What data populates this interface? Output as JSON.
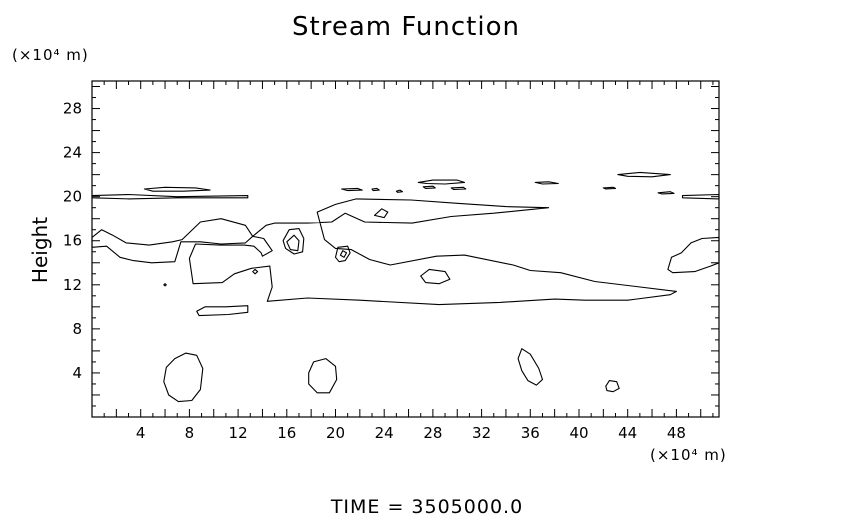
{
  "chart_data": {
    "type": "contour",
    "title": "Stream Function",
    "ylabel": "Height",
    "y_unit": "(×10⁴ m)",
    "x_unit": "(×10⁴ m)",
    "footer": "TIME  =  3505000.0",
    "xlim": [
      0,
      51.5
    ],
    "ylim": [
      0,
      30.5
    ],
    "x_ticks_labeled": [
      4,
      8,
      12,
      16,
      20,
      24,
      28,
      32,
      36,
      40,
      44,
      48
    ],
    "y_ticks_labeled": [
      4,
      8,
      12,
      16,
      20,
      24,
      28
    ],
    "contours": [
      {
        "name": "upper-band-left",
        "closed": true,
        "points": [
          [
            0,
            20.1
          ],
          [
            3,
            20.2
          ],
          [
            7,
            20.0
          ],
          [
            12.8,
            20.1
          ],
          [
            12.8,
            19.9
          ],
          [
            7,
            19.9
          ],
          [
            3,
            19.8
          ],
          [
            0,
            19.9
          ]
        ]
      },
      {
        "name": "patch-a",
        "closed": true,
        "points": [
          [
            4.3,
            20.7
          ],
          [
            6,
            20.85
          ],
          [
            8.5,
            20.8
          ],
          [
            9.7,
            20.6
          ],
          [
            7.5,
            20.5
          ],
          [
            5,
            20.5
          ]
        ]
      },
      {
        "name": "patch-b",
        "closed": true,
        "points": [
          [
            20.5,
            20.7
          ],
          [
            21.8,
            20.75
          ],
          [
            22.2,
            20.6
          ],
          [
            21,
            20.55
          ]
        ]
      },
      {
        "name": "patch-c",
        "closed": true,
        "points": [
          [
            23,
            20.7
          ],
          [
            23.4,
            20.75
          ],
          [
            23.6,
            20.6
          ],
          [
            23.1,
            20.55
          ]
        ]
      },
      {
        "name": "patch-d",
        "closed": true,
        "points": [
          [
            25,
            20.5
          ],
          [
            25.3,
            20.6
          ],
          [
            25.5,
            20.45
          ],
          [
            25.1,
            20.4
          ]
        ]
      },
      {
        "name": "patch-e",
        "closed": true,
        "points": [
          [
            26.8,
            21.3
          ],
          [
            28,
            21.5
          ],
          [
            30,
            21.5
          ],
          [
            30.6,
            21.3
          ],
          [
            29,
            21.15
          ],
          [
            27.5,
            21.2
          ]
        ]
      },
      {
        "name": "patch-f",
        "closed": true,
        "points": [
          [
            27.2,
            20.9
          ],
          [
            28,
            20.95
          ],
          [
            28.2,
            20.8
          ],
          [
            27.4,
            20.75
          ]
        ]
      },
      {
        "name": "patch-g",
        "closed": true,
        "points": [
          [
            29.5,
            20.8
          ],
          [
            30.5,
            20.85
          ],
          [
            30.7,
            20.7
          ],
          [
            29.7,
            20.65
          ]
        ]
      },
      {
        "name": "patch-h",
        "closed": true,
        "points": [
          [
            36.4,
            21.3
          ],
          [
            37.5,
            21.35
          ],
          [
            38.3,
            21.2
          ],
          [
            37,
            21.15
          ]
        ]
      },
      {
        "name": "patch-i",
        "closed": true,
        "points": [
          [
            43.2,
            22.0
          ],
          [
            45,
            22.2
          ],
          [
            47.5,
            22.0
          ],
          [
            46,
            21.8
          ],
          [
            44,
            21.85
          ]
        ]
      },
      {
        "name": "patch-j",
        "closed": true,
        "points": [
          [
            42,
            20.8
          ],
          [
            42.8,
            20.85
          ],
          [
            43,
            20.75
          ],
          [
            42.2,
            20.7
          ]
        ]
      },
      {
        "name": "patch-k",
        "closed": true,
        "points": [
          [
            46.5,
            20.35
          ],
          [
            47.5,
            20.45
          ],
          [
            47.8,
            20.3
          ],
          [
            46.8,
            20.25
          ]
        ]
      },
      {
        "name": "upper-band-right",
        "closed": true,
        "points": [
          [
            48.5,
            20.1
          ],
          [
            51.5,
            20.2
          ],
          [
            51.5,
            19.8
          ],
          [
            48.5,
            19.9
          ]
        ]
      },
      {
        "name": "main-band",
        "closed": true,
        "points": [
          [
            0,
            16.3
          ],
          [
            0.8,
            17.0
          ],
          [
            1.7,
            16.5
          ],
          [
            2.8,
            15.8
          ],
          [
            4.7,
            15.6
          ],
          [
            6.6,
            15.9
          ],
          [
            7.4,
            16.1
          ],
          [
            8.9,
            17.7
          ],
          [
            10.6,
            18.0
          ],
          [
            12.6,
            17.4
          ],
          [
            13.2,
            16.4
          ],
          [
            14.1,
            16.2
          ],
          [
            14.8,
            15.1
          ],
          [
            14.0,
            14.6
          ],
          [
            13.9,
            14.9
          ],
          [
            13.3,
            15.5
          ],
          [
            12.5,
            15.6
          ],
          [
            10.5,
            15.6
          ],
          [
            8.5,
            15.7
          ],
          [
            8.0,
            14.4
          ],
          [
            8.3,
            12.1
          ],
          [
            10.7,
            12.2
          ],
          [
            11.7,
            13.0
          ],
          [
            13.1,
            13.5
          ],
          [
            14.6,
            13.7
          ],
          [
            14.8,
            11.8
          ],
          [
            14.4,
            10.5
          ],
          [
            17.7,
            10.8
          ],
          [
            22.0,
            10.6
          ],
          [
            28.5,
            10.2
          ],
          [
            33.5,
            10.4
          ],
          [
            38.0,
            10.7
          ],
          [
            40.5,
            10.6
          ],
          [
            44.0,
            10.6
          ],
          [
            47.5,
            11.1
          ],
          [
            48.0,
            11.4
          ],
          [
            41.3,
            12.3
          ],
          [
            38.5,
            13.1
          ],
          [
            36.0,
            13.3
          ],
          [
            34.6,
            13.8
          ],
          [
            30.6,
            14.7
          ],
          [
            28.3,
            14.6
          ],
          [
            24.5,
            13.8
          ],
          [
            22.8,
            14.3
          ],
          [
            21.3,
            15.2
          ],
          [
            20.0,
            15.3
          ],
          [
            19.1,
            16.1
          ],
          [
            18.5,
            18.6
          ],
          [
            20.0,
            19.3
          ],
          [
            21.7,
            19.8
          ],
          [
            26.2,
            19.7
          ],
          [
            30.0,
            19.4
          ],
          [
            34.0,
            19.1
          ],
          [
            37.5,
            19.0
          ],
          [
            33.0,
            18.5
          ],
          [
            29.5,
            18.2
          ],
          [
            26.3,
            17.6
          ],
          [
            22.4,
            17.7
          ],
          [
            20.8,
            18.5
          ],
          [
            19.7,
            17.7
          ],
          [
            17.7,
            17.6
          ],
          [
            15.0,
            17.6
          ],
          [
            14.3,
            17.4
          ],
          [
            13.2,
            16.4
          ],
          [
            12.6,
            15.8
          ],
          [
            10.6,
            15.7
          ],
          [
            8.9,
            15.9
          ],
          [
            7.3,
            15.9
          ],
          [
            6.8,
            14.1
          ],
          [
            4.9,
            14.0
          ],
          [
            3.4,
            14.2
          ],
          [
            2.3,
            14.5
          ],
          [
            1.2,
            15.5
          ],
          [
            0,
            15.4
          ]
        ]
      },
      {
        "name": "small-oval-24",
        "closed": true,
        "points": [
          [
            23.2,
            18.3
          ],
          [
            23.8,
            18.9
          ],
          [
            24.3,
            18.6
          ],
          [
            24.0,
            18.1
          ]
        ]
      },
      {
        "name": "oval-28",
        "closed": true,
        "points": [
          [
            27.0,
            12.8
          ],
          [
            27.7,
            13.4
          ],
          [
            29.0,
            13.2
          ],
          [
            29.4,
            12.5
          ],
          [
            28.5,
            12.1
          ],
          [
            27.4,
            12.2
          ]
        ]
      },
      {
        "name": "closed-16",
        "closed": true,
        "points": [
          [
            15.7,
            16.0
          ],
          [
            16.2,
            17.0
          ],
          [
            17.0,
            17.1
          ],
          [
            17.4,
            16.2
          ],
          [
            17.3,
            15.0
          ],
          [
            16.6,
            14.8
          ],
          [
            15.9,
            15.3
          ]
        ]
      },
      {
        "name": "inner-16",
        "closed": true,
        "points": [
          [
            16.0,
            15.9
          ],
          [
            16.6,
            16.5
          ],
          [
            17.0,
            16.0
          ],
          [
            16.9,
            15.1
          ],
          [
            16.3,
            15.2
          ]
        ]
      },
      {
        "name": "closed-20",
        "closed": true,
        "points": [
          [
            20.0,
            14.5
          ],
          [
            20.2,
            15.4
          ],
          [
            21.0,
            15.5
          ],
          [
            21.2,
            14.9
          ],
          [
            20.8,
            14.2
          ],
          [
            20.3,
            14.1
          ]
        ]
      },
      {
        "name": "inner-20",
        "closed": true,
        "points": [
          [
            20.4,
            14.7
          ],
          [
            20.6,
            15.1
          ],
          [
            20.9,
            14.9
          ],
          [
            20.7,
            14.5
          ]
        ]
      },
      {
        "name": "tiny-13",
        "closed": true,
        "points": [
          [
            13.2,
            13.2
          ],
          [
            13.4,
            13.4
          ],
          [
            13.6,
            13.2
          ],
          [
            13.4,
            13.0
          ]
        ]
      },
      {
        "name": "dot-6",
        "closed": true,
        "points": [
          [
            5.9,
            12.0
          ],
          [
            6.0,
            12.1
          ],
          [
            6.1,
            12.0
          ],
          [
            6.0,
            11.9
          ]
        ]
      },
      {
        "name": "oval-10",
        "closed": true,
        "points": [
          [
            8.6,
            9.6
          ],
          [
            9.3,
            10.0
          ],
          [
            11.0,
            10.0
          ],
          [
            12.8,
            10.1
          ],
          [
            12.8,
            9.5
          ],
          [
            11.2,
            9.3
          ],
          [
            8.8,
            9.2
          ]
        ]
      },
      {
        "name": "right-lobe",
        "closed": true,
        "points": [
          [
            51.5,
            16.3
          ],
          [
            50.1,
            16.2
          ],
          [
            49.2,
            15.8
          ],
          [
            48.4,
            14.9
          ],
          [
            47.6,
            14.5
          ],
          [
            47.3,
            13.4
          ],
          [
            47.7,
            13.1
          ],
          [
            49.5,
            13.2
          ],
          [
            50.8,
            13.7
          ],
          [
            51.5,
            14.0
          ]
        ]
      },
      {
        "name": "oval-7",
        "closed": true,
        "points": [
          [
            5.9,
            3.2
          ],
          [
            6.1,
            4.5
          ],
          [
            6.8,
            5.3
          ],
          [
            7.7,
            5.8
          ],
          [
            8.6,
            5.6
          ],
          [
            9.1,
            4.4
          ],
          [
            8.9,
            2.5
          ],
          [
            8.2,
            1.5
          ],
          [
            7.1,
            1.4
          ],
          [
            6.3,
            2.0
          ]
        ]
      },
      {
        "name": "oval-19",
        "closed": true,
        "points": [
          [
            17.8,
            4.0
          ],
          [
            18.2,
            5.0
          ],
          [
            19.2,
            5.3
          ],
          [
            20.0,
            4.6
          ],
          [
            20.1,
            3.4
          ],
          [
            19.5,
            2.2
          ],
          [
            18.5,
            2.2
          ],
          [
            17.8,
            3.0
          ]
        ]
      },
      {
        "name": "oval-36",
        "closed": true,
        "points": [
          [
            35.0,
            5.3
          ],
          [
            35.3,
            6.2
          ],
          [
            36.0,
            5.7
          ],
          [
            36.7,
            4.4
          ],
          [
            37.0,
            3.4
          ],
          [
            36.5,
            2.9
          ],
          [
            35.8,
            3.3
          ],
          [
            35.3,
            4.2
          ]
        ]
      },
      {
        "name": "oval-43",
        "closed": true,
        "points": [
          [
            42.2,
            2.8
          ],
          [
            42.5,
            3.3
          ],
          [
            43.1,
            3.2
          ],
          [
            43.3,
            2.6
          ],
          [
            42.8,
            2.3
          ],
          [
            42.3,
            2.4
          ]
        ]
      }
    ]
  }
}
